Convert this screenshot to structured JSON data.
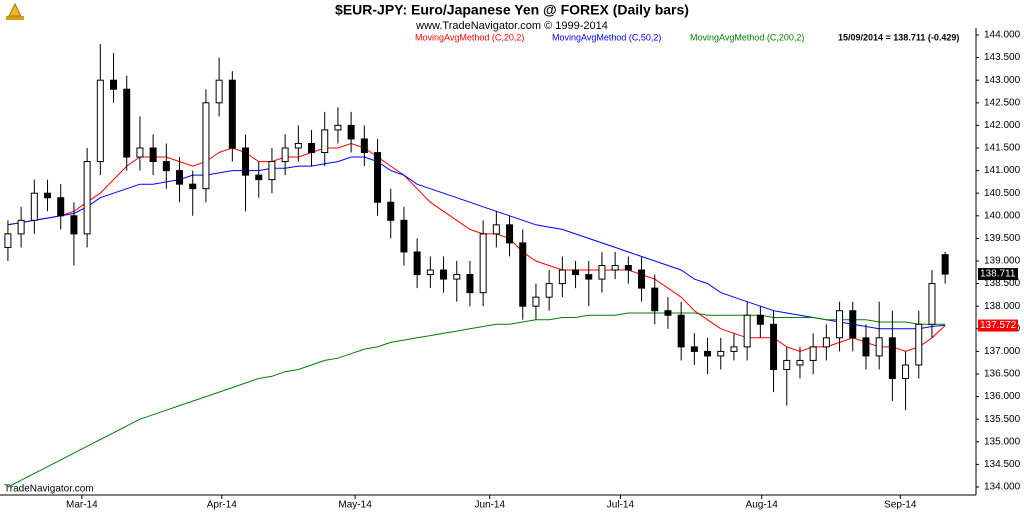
{
  "chart_data": {
    "type": "candlestick",
    "title": "$EUR-JPY:  Euro/Japanese Yen @ FOREX  (Daily bars)",
    "subtitle": "www.TradeNavigator.com © 1999-2014",
    "quote": "15/09/2014 = 138.711 (-0.429)",
    "footer": "TradeNavigator.com",
    "up_color": "#ffffff",
    "down_color": "#000000",
    "open": [
      139.3,
      139.6,
      139.9,
      140.5,
      140.4,
      140.0,
      139.6,
      141.2,
      143.0,
      142.8,
      141.3,
      141.5,
      141.2,
      141.0,
      140.7,
      140.6,
      142.5,
      143.0,
      141.5,
      140.9,
      140.8,
      141.2,
      141.5,
      141.6,
      141.4,
      141.9,
      142.0,
      141.7,
      141.4,
      140.3,
      139.9,
      139.2,
      138.7,
      138.8,
      138.6,
      138.7,
      138.3,
      139.6,
      139.8,
      139.4,
      138.0,
      138.2,
      138.5,
      138.8,
      138.7,
      138.6,
      138.8,
      138.9,
      138.8,
      138.4,
      137.9,
      137.8,
      137.1,
      137.0,
      136.9,
      137.0,
      137.1,
      137.8,
      137.6,
      136.6,
      136.7,
      136.8,
      137.1,
      137.3,
      137.9,
      137.3,
      136.9,
      137.3,
      136.4,
      136.7,
      137.6,
      139.14
    ],
    "high": [
      139.9,
      140.2,
      140.8,
      140.8,
      140.7,
      140.3,
      141.5,
      143.8,
      143.6,
      143.1,
      142.2,
      141.8,
      141.6,
      141.3,
      141.0,
      142.8,
      143.5,
      143.2,
      141.8,
      141.2,
      141.5,
      141.8,
      142.0,
      141.9,
      142.3,
      142.4,
      142.3,
      142.0,
      141.7,
      140.6,
      140.2,
      139.5,
      139.1,
      139.1,
      139.0,
      139.0,
      139.9,
      140.1,
      140.0,
      139.7,
      138.5,
      138.8,
      139.1,
      139.0,
      139.0,
      139.2,
      139.2,
      139.1,
      139.1,
      138.7,
      138.2,
      138.1,
      137.4,
      137.3,
      137.3,
      137.4,
      138.1,
      138.0,
      137.9,
      137.1,
      137.1,
      137.4,
      137.6,
      138.1,
      138.1,
      137.6,
      138.1,
      137.9,
      137.0,
      137.9,
      138.8,
      139.2
    ],
    "low": [
      139.0,
      139.3,
      139.6,
      140.1,
      139.7,
      138.9,
      139.3,
      140.9,
      142.5,
      141.0,
      141.0,
      140.9,
      140.6,
      140.3,
      140.0,
      140.3,
      142.2,
      141.2,
      140.1,
      140.4,
      140.5,
      140.9,
      141.2,
      141.1,
      141.1,
      141.6,
      141.4,
      141.1,
      140.0,
      139.5,
      138.9,
      138.4,
      138.4,
      138.3,
      138.1,
      138.0,
      138.0,
      139.3,
      139.1,
      137.7,
      137.7,
      137.9,
      138.2,
      138.4,
      138.0,
      138.3,
      138.6,
      138.5,
      138.1,
      137.6,
      137.5,
      136.8,
      136.7,
      136.5,
      136.6,
      136.8,
      136.8,
      137.3,
      136.1,
      135.8,
      136.4,
      136.5,
      136.8,
      137.0,
      137.0,
      136.6,
      136.6,
      135.9,
      135.7,
      136.4,
      137.3,
      138.5
    ],
    "close": [
      139.6,
      139.9,
      140.5,
      140.4,
      140.0,
      139.6,
      141.2,
      143.0,
      142.8,
      141.3,
      141.5,
      141.2,
      141.0,
      140.7,
      140.6,
      142.5,
      143.0,
      141.5,
      140.9,
      140.8,
      141.2,
      141.5,
      141.6,
      141.4,
      141.9,
      142.0,
      141.7,
      141.4,
      140.3,
      139.9,
      139.2,
      138.7,
      138.8,
      138.6,
      138.7,
      138.3,
      139.6,
      139.8,
      139.4,
      138.0,
      138.2,
      138.5,
      138.8,
      138.7,
      138.6,
      138.9,
      138.9,
      138.8,
      138.4,
      137.9,
      137.8,
      137.1,
      137.0,
      136.9,
      137.0,
      137.1,
      137.8,
      137.6,
      136.6,
      136.8,
      136.8,
      137.1,
      137.3,
      137.9,
      137.3,
      136.9,
      137.3,
      136.4,
      136.7,
      137.6,
      138.5,
      138.711
    ],
    "series": [
      {
        "name": "MovingAvgMethod (C,20,2)",
        "color": "#ff0000",
        "values": [
          139.8,
          139.85,
          139.9,
          139.95,
          140.0,
          140.1,
          140.3,
          140.5,
          140.8,
          141.1,
          141.3,
          141.3,
          141.3,
          141.2,
          141.1,
          141.2,
          141.4,
          141.5,
          141.4,
          141.2,
          141.2,
          141.3,
          141.3,
          141.4,
          141.5,
          141.5,
          141.6,
          141.5,
          141.3,
          141.1,
          140.9,
          140.6,
          140.3,
          140.1,
          139.9,
          139.7,
          139.6,
          139.6,
          139.5,
          139.2,
          139.0,
          138.9,
          138.8,
          138.8,
          138.8,
          138.8,
          138.8,
          138.8,
          138.7,
          138.6,
          138.4,
          138.2,
          137.9,
          137.7,
          137.5,
          137.4,
          137.3,
          137.3,
          137.3,
          137.1,
          137.0,
          137.1,
          137.1,
          137.2,
          137.3,
          137.2,
          137.1,
          137.1,
          137.0,
          137.1,
          137.3,
          137.572
        ]
      },
      {
        "name": "MovingAvgMethod (C,50,2)",
        "color": "#0000ff",
        "values": [
          139.8,
          139.85,
          139.9,
          139.95,
          140.0,
          140.05,
          140.2,
          140.4,
          140.5,
          140.6,
          140.7,
          140.7,
          140.75,
          140.8,
          140.9,
          140.9,
          140.95,
          141.0,
          141.0,
          141.0,
          141.05,
          141.05,
          141.1,
          141.1,
          141.15,
          141.2,
          141.3,
          141.3,
          141.2,
          141.0,
          140.9,
          140.7,
          140.6,
          140.5,
          140.4,
          140.3,
          140.2,
          140.1,
          140.0,
          139.9,
          139.8,
          139.75,
          139.7,
          139.6,
          139.5,
          139.4,
          139.3,
          139.2,
          139.1,
          139.0,
          138.9,
          138.8,
          138.6,
          138.5,
          138.3,
          138.2,
          138.1,
          138.0,
          137.9,
          137.85,
          137.8,
          137.75,
          137.7,
          137.65,
          137.6,
          137.55,
          137.5,
          137.5,
          137.5,
          137.5,
          137.55,
          137.58
        ]
      },
      {
        "name": "MovingAvgMethod (C,200,2)",
        "color": "#008000",
        "values": [
          134.0,
          134.15,
          134.3,
          134.45,
          134.6,
          134.75,
          134.9,
          135.05,
          135.2,
          135.35,
          135.5,
          135.6,
          135.7,
          135.8,
          135.9,
          136.0,
          136.1,
          136.2,
          136.3,
          136.4,
          136.45,
          136.55,
          136.6,
          136.7,
          136.8,
          136.85,
          136.95,
          137.05,
          137.1,
          137.2,
          137.25,
          137.3,
          137.35,
          137.4,
          137.45,
          137.5,
          137.55,
          137.6,
          137.6,
          137.65,
          137.7,
          137.7,
          137.75,
          137.75,
          137.8,
          137.8,
          137.8,
          137.85,
          137.85,
          137.85,
          137.85,
          137.85,
          137.85,
          137.8,
          137.8,
          137.8,
          137.8,
          137.8,
          137.75,
          137.75,
          137.75,
          137.75,
          137.7,
          137.7,
          137.7,
          137.7,
          137.65,
          137.65,
          137.65,
          137.6,
          137.6,
          137.6
        ]
      }
    ],
    "last_labels": [
      {
        "value": 138.711,
        "label": "138.711",
        "color": "#000000"
      },
      {
        "value": 137.572,
        "label": "137.572",
        "color": "#ff0000"
      }
    ],
    "xlim": [
      -0.6,
      73.26
    ],
    "xticks": [
      {
        "value": 5.6,
        "label": "Mar-14"
      },
      {
        "value": 16.2,
        "label": "Apr-14"
      },
      {
        "value": 26.3,
        "label": "May-14"
      },
      {
        "value": 36.5,
        "label": "Jun-14"
      },
      {
        "value": 46.4,
        "label": "Jul-14"
      },
      {
        "value": 57.1,
        "label": "Aug-14"
      },
      {
        "value": 67.6,
        "label": "Sep-14"
      }
    ],
    "ylim": [
      134,
      144
    ],
    "yticks": [
      {
        "value": 134,
        "label": "134.000"
      },
      {
        "value": 134.5,
        "label": "134.500"
      },
      {
        "value": 135,
        "label": "135.000"
      },
      {
        "value": 135.5,
        "label": "135.500"
      },
      {
        "value": 136,
        "label": "136.000"
      },
      {
        "value": 136.5,
        "label": "136.500"
      },
      {
        "value": 137,
        "label": "137.000"
      },
      {
        "value": 137.5,
        "label": "137.500"
      },
      {
        "value": 138,
        "label": "138.000"
      },
      {
        "value": 138.5,
        "label": "138.500"
      },
      {
        "value": 139,
        "label": "139.000"
      },
      {
        "value": 139.5,
        "label": "139.500"
      },
      {
        "value": 140,
        "label": "140.000"
      },
      {
        "value": 140.5,
        "label": "140.500"
      },
      {
        "value": 141,
        "label": "141.000"
      },
      {
        "value": 141.5,
        "label": "141.500"
      },
      {
        "value": 142,
        "label": "142.000"
      },
      {
        "value": 142.5,
        "label": "142.500"
      },
      {
        "value": 143,
        "label": "143.000"
      },
      {
        "value": 143.5,
        "label": "143.500"
      },
      {
        "value": 144,
        "label": "144.000"
      }
    ]
  }
}
